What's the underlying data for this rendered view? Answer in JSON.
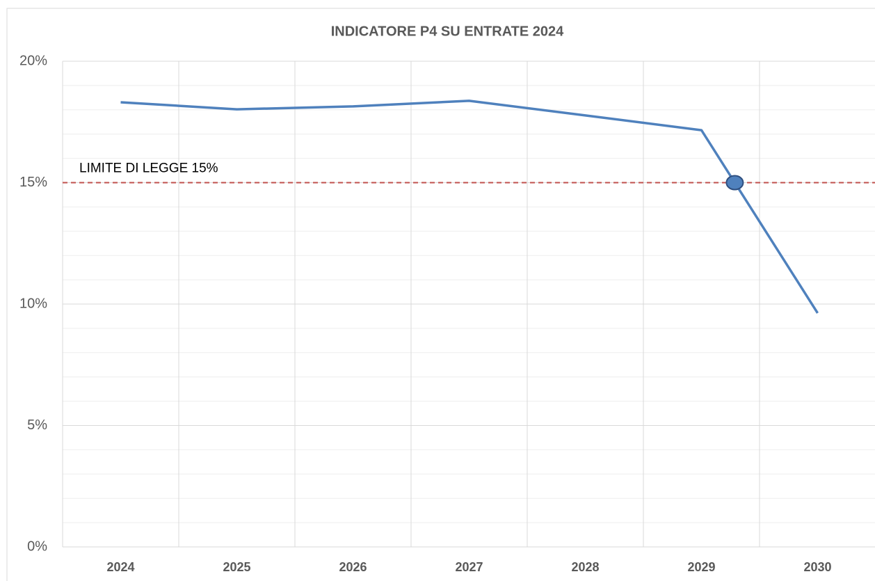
{
  "chart_data": {
    "type": "line",
    "title": "INDICATORE P4 SU ENTRATE 2024",
    "categories": [
      "2024",
      "2025",
      "2026",
      "2027",
      "2028",
      "2029",
      "2030"
    ],
    "series": [
      {
        "name": "INDICATORE P4",
        "color": "#4f81bd",
        "values": [
          18.31,
          18.02,
          18.14,
          18.37,
          17.77,
          17.16,
          9.63
        ]
      }
    ],
    "ylim": [
      0,
      20
    ],
    "yticks": [
      {
        "value": 0,
        "label": "0%"
      },
      {
        "value": 5,
        "label": "5%"
      },
      {
        "value": 10,
        "label": "10%"
      },
      {
        "value": 15,
        "label": "15%"
      },
      {
        "value": 20,
        "label": "20%"
      }
    ],
    "grid": true,
    "minor_grid": true,
    "reference_line": {
      "value": 15,
      "label": "LIMITE DI LEGGE 15%",
      "color": "#c0504d"
    },
    "legend": false
  }
}
